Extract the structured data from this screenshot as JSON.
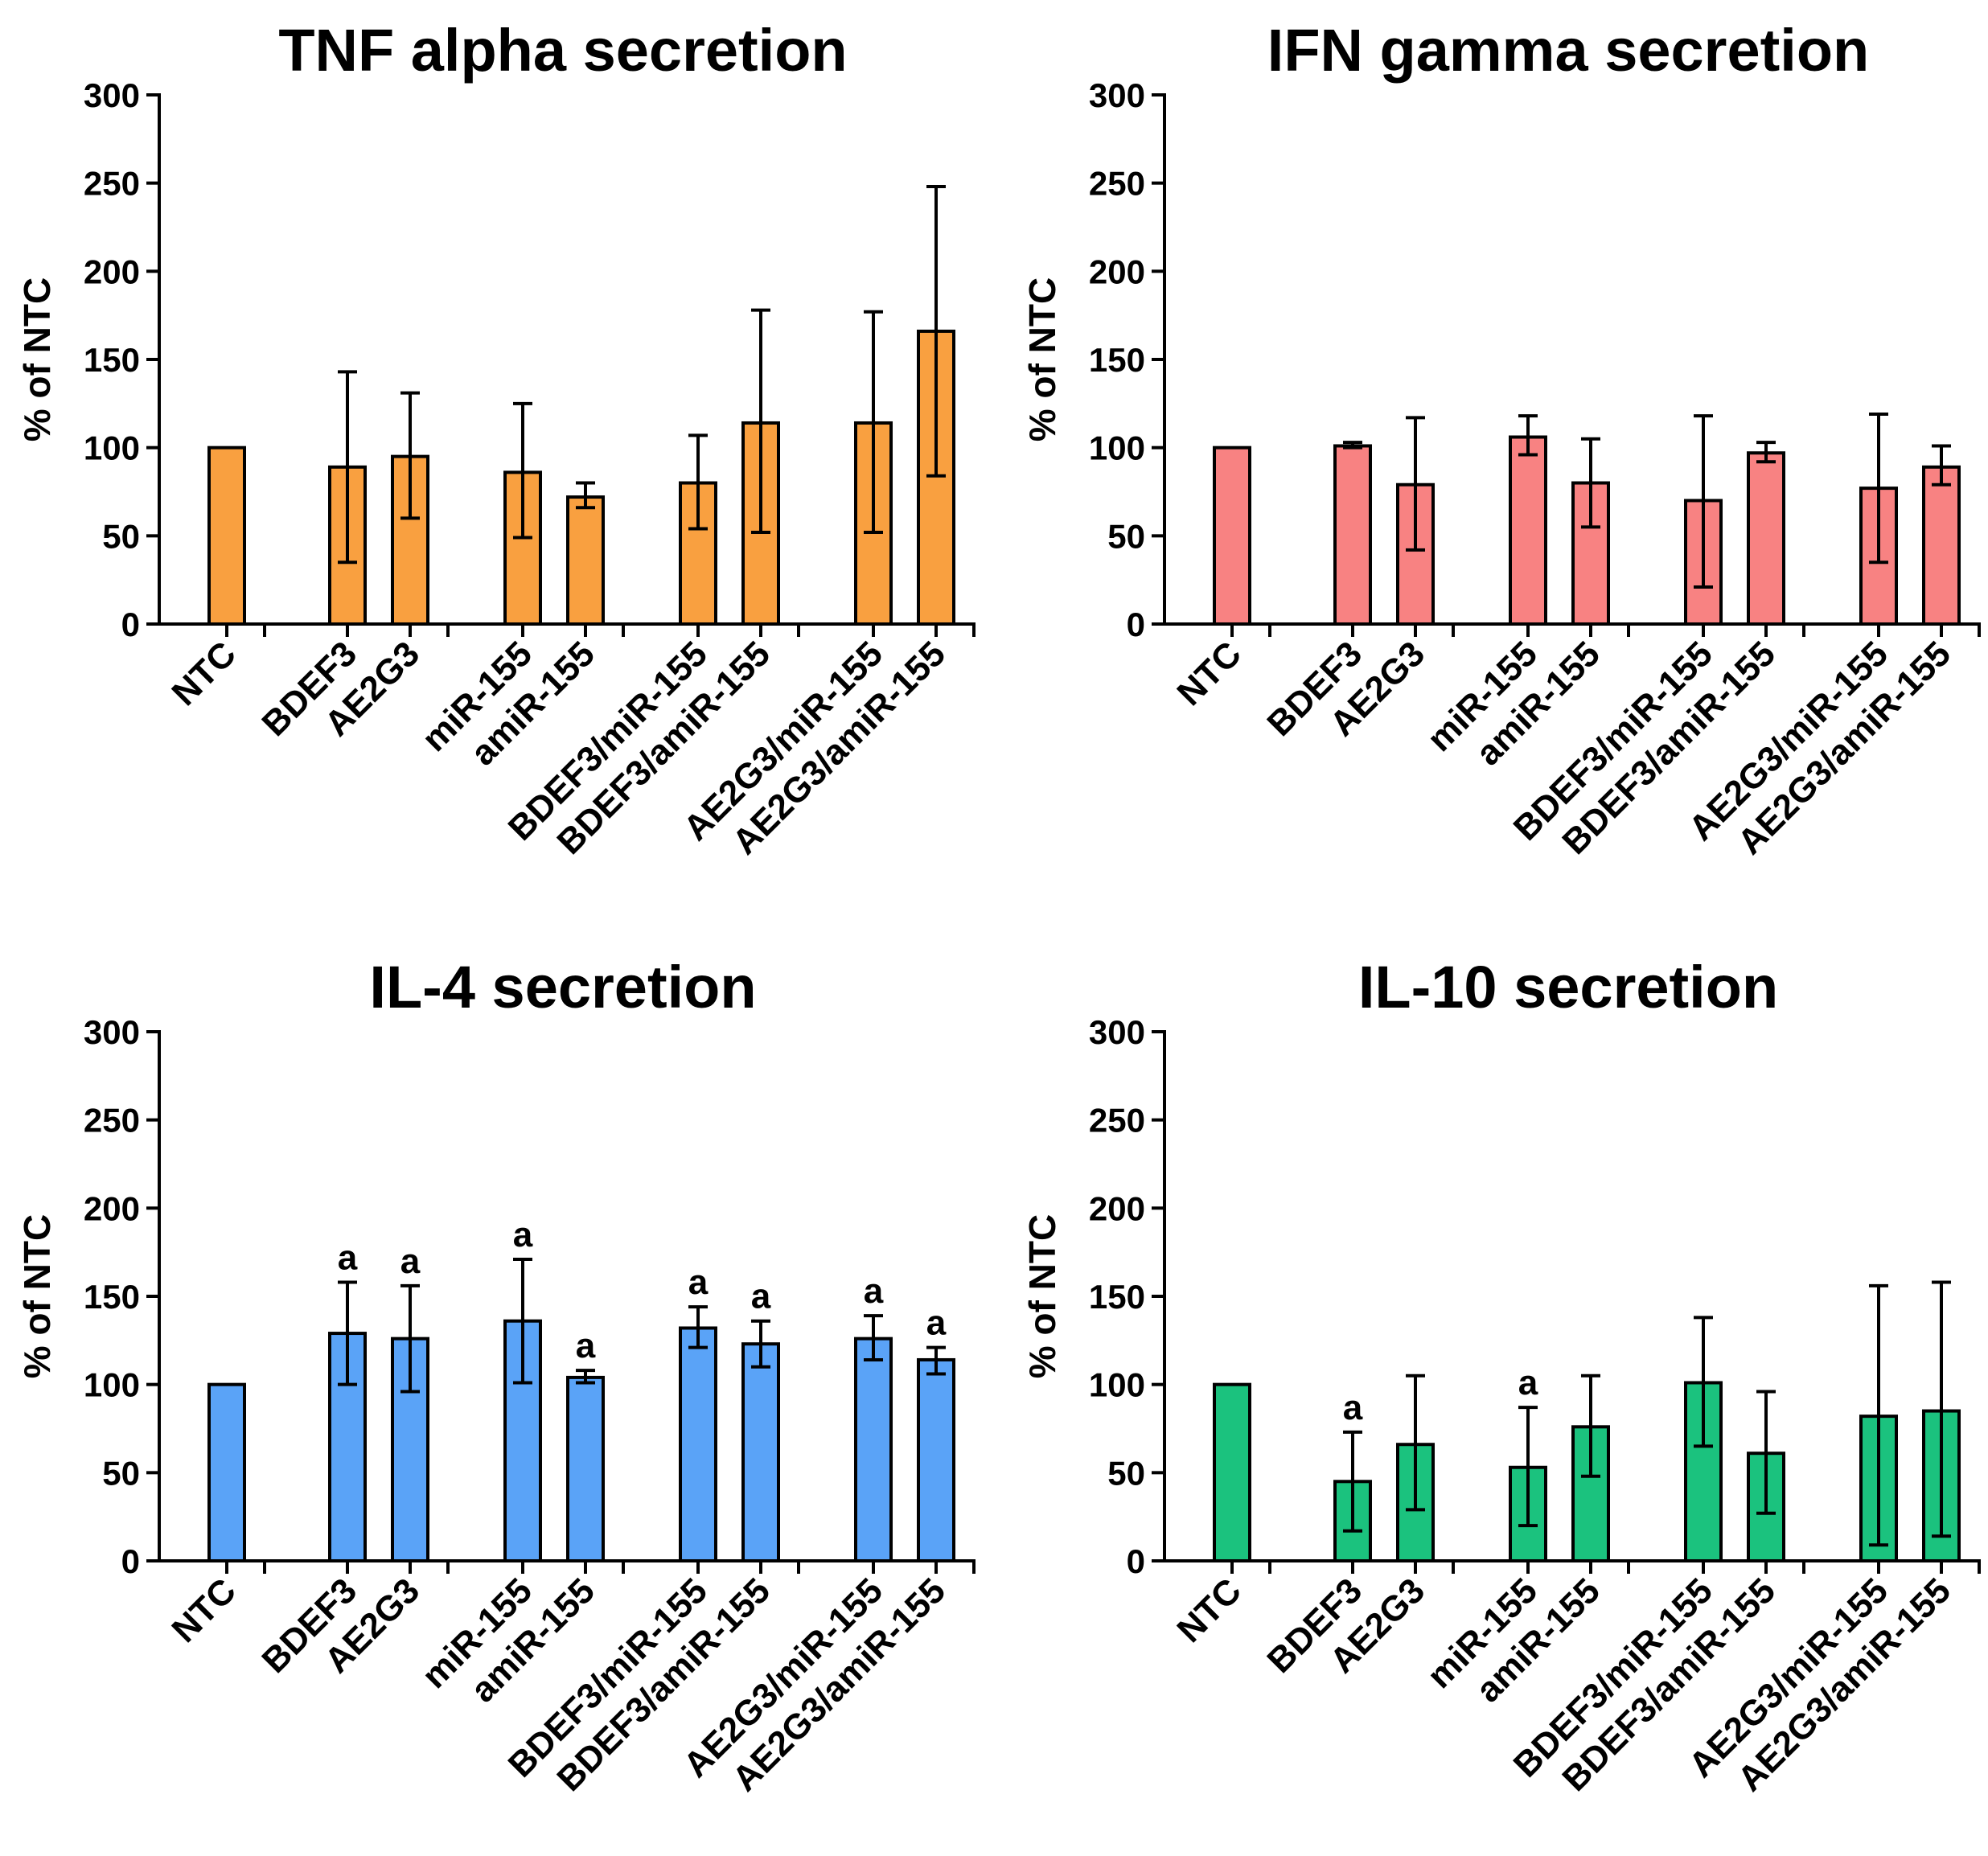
{
  "figure": {
    "y_axis_label": "% of NTC"
  },
  "chart_data": [
    {
      "type": "bar",
      "title": "TNF alpha secretion",
      "ylabel": "% of NTC",
      "xlabel": "",
      "ylim": [
        0,
        300
      ],
      "yticks": [
        0,
        50,
        100,
        150,
        200,
        250,
        300
      ],
      "color": "#F9A040",
      "categories": [
        "NTC",
        "BDEF3",
        "AE2G3",
        "miR-155",
        "amiR-155",
        "BDEF3/miR-155",
        "BDEF3/amiR-155",
        "AE2G3/miR-155",
        "AE2G3/amiR-155"
      ],
      "values": [
        100,
        89,
        95,
        86,
        72,
        80,
        114,
        114,
        166
      ],
      "error_low": [
        null,
        35,
        60,
        49,
        66,
        54,
        52,
        52,
        84
      ],
      "error_high": [
        null,
        143,
        131,
        125,
        80,
        107,
        178,
        177,
        248
      ],
      "annotations": [
        "",
        "",
        "",
        "",
        "",
        "",
        "",
        "",
        ""
      ]
    },
    {
      "type": "bar",
      "title": "IFN gamma secretion",
      "ylabel": "% of NTC",
      "xlabel": "",
      "ylim": [
        0,
        300
      ],
      "yticks": [
        0,
        50,
        100,
        150,
        200,
        250,
        300
      ],
      "color": "#F88282",
      "categories": [
        "NTC",
        "BDEF3",
        "AE2G3",
        "miR-155",
        "amiR-155",
        "BDEF3/miR-155",
        "BDEF3/amiR-155",
        "AE2G3/miR-155",
        "AE2G3/amiR-155"
      ],
      "values": [
        100,
        101,
        79,
        106,
        80,
        70,
        97,
        77,
        89
      ],
      "error_low": [
        null,
        100,
        42,
        96,
        55,
        21,
        92,
        35,
        79
      ],
      "error_high": [
        null,
        103,
        117,
        118,
        105,
        118,
        103,
        119,
        101
      ],
      "annotations": [
        "",
        "",
        "",
        "",
        "",
        "",
        "",
        "",
        ""
      ]
    },
    {
      "type": "bar",
      "title": "IL-4 secretion",
      "ylabel": "% of NTC",
      "xlabel": "",
      "ylim": [
        0,
        300
      ],
      "yticks": [
        0,
        50,
        100,
        150,
        200,
        250,
        300
      ],
      "color": "#5AA3F7",
      "categories": [
        "NTC",
        "BDEF3",
        "AE2G3",
        "miR-155",
        "amiR-155",
        "BDEF3/miR-155",
        "BDEF3/amiR-155",
        "AE2G3/miR-155",
        "AE2G3/amiR-155"
      ],
      "values": [
        100,
        129,
        126,
        136,
        104,
        132,
        123,
        126,
        114
      ],
      "error_low": [
        null,
        100,
        96,
        101,
        101,
        121,
        110,
        114,
        106
      ],
      "error_high": [
        null,
        158,
        156,
        171,
        108,
        144,
        136,
        139,
        121
      ],
      "annotations": [
        "",
        "a",
        "a",
        "a",
        "a",
        "a",
        "a",
        "a",
        "a"
      ]
    },
    {
      "type": "bar",
      "title": "IL-10 secretion",
      "ylabel": "% of NTC",
      "xlabel": "",
      "ylim": [
        0,
        300
      ],
      "yticks": [
        0,
        50,
        100,
        150,
        200,
        250,
        300
      ],
      "color": "#1BC27E",
      "categories": [
        "NTC",
        "BDEF3",
        "AE2G3",
        "miR-155",
        "amiR-155",
        "BDEF3/miR-155",
        "BDEF3/amiR-155",
        "AE2G3/miR-155",
        "AE2G3/amiR-155"
      ],
      "values": [
        100,
        45,
        66,
        53,
        76,
        101,
        61,
        82,
        85
      ],
      "error_low": [
        null,
        17,
        29,
        20,
        48,
        65,
        27,
        9,
        14
      ],
      "error_high": [
        null,
        73,
        105,
        87,
        105,
        138,
        96,
        156,
        158
      ],
      "annotations": [
        "",
        "a",
        "",
        "a",
        "",
        "",
        "",
        "",
        ""
      ]
    }
  ]
}
